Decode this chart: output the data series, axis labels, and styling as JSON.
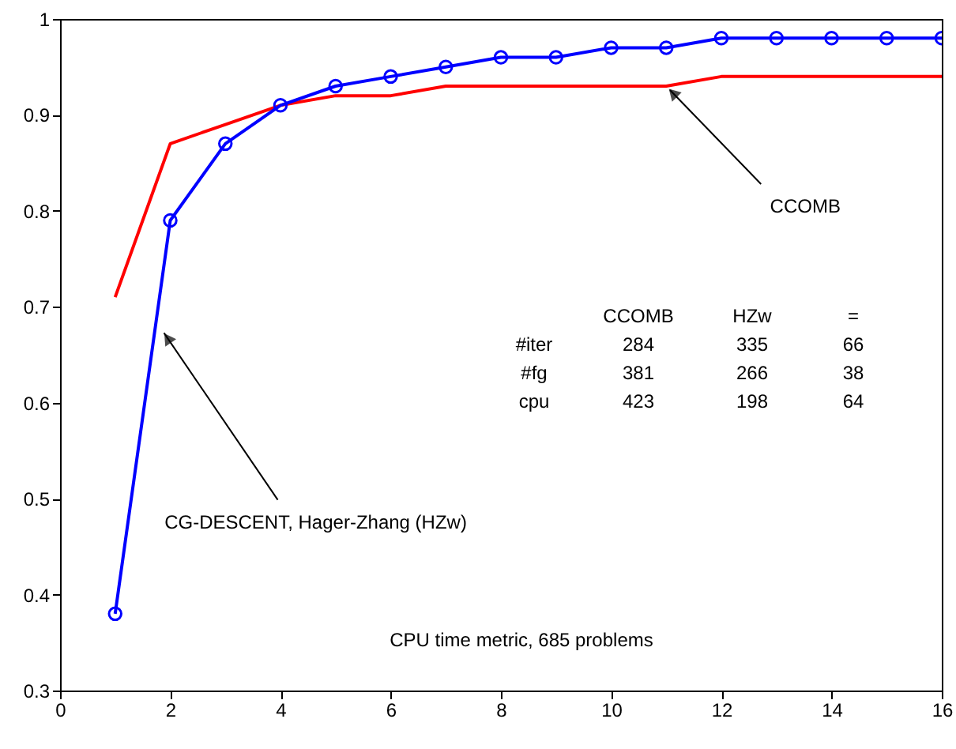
{
  "chart_data": {
    "type": "line",
    "x": [
      1,
      2,
      3,
      4,
      5,
      6,
      7,
      8,
      9,
      10,
      11,
      12,
      13,
      14,
      15,
      16
    ],
    "series": [
      {
        "color": "#ff0000",
        "marker": "none",
        "values": [
          0.71,
          0.87,
          0.89,
          0.91,
          0.92,
          0.92,
          0.93,
          0.93,
          0.93,
          0.93,
          0.93,
          0.94,
          0.94,
          0.94,
          0.94,
          0.94
        ]
      },
      {
        "color": "#0000ff",
        "marker": "circle",
        "values": [
          0.38,
          0.79,
          0.87,
          0.91,
          0.93,
          0.94,
          0.95,
          0.96,
          0.96,
          0.97,
          0.97,
          0.98,
          0.98,
          0.98,
          0.98,
          0.98
        ]
      }
    ],
    "xlim": [
      0,
      16
    ],
    "xticks": [
      0,
      2,
      4,
      6,
      8,
      10,
      12,
      14,
      16
    ],
    "ylim": [
      0.3,
      1
    ],
    "yticks": [
      0.3,
      0.4,
      0.5,
      0.6,
      0.7,
      0.8,
      0.9,
      1
    ],
    "grid": false,
    "annotations": [
      {
        "text": "CCOMB",
        "x": 11,
        "y": 0.93
      },
      {
        "text": "CG-DESCENT, Hager-Zhang (HZw)",
        "x": 1.8,
        "y": 0.68
      },
      "CCOMB HZw =",
      "#iter 284 335 66",
      "#fg 381 266 38",
      "cpu 423 198 64",
      "CPU time metric, 685 problems"
    ]
  }
}
